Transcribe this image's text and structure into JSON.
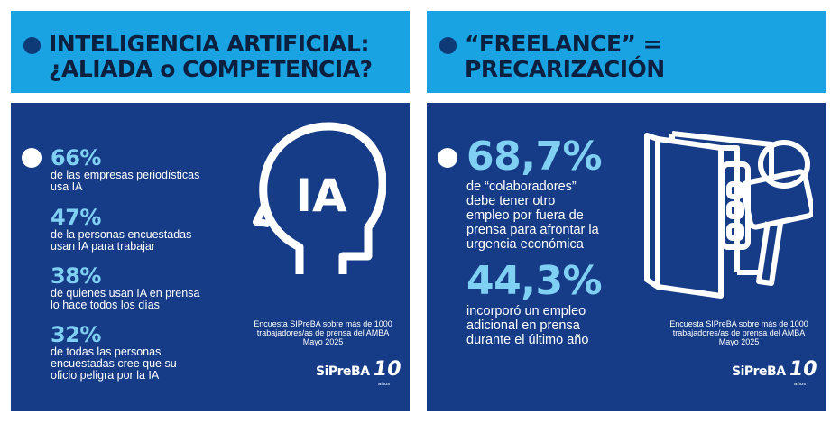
{
  "left": {
    "title": "INTELIGENCIA ARTIFICIAL:\n¿ALIADA o COMPETENCIA?",
    "stats": [
      {
        "value": "66%",
        "text": "de las empresas periodísticas\nusa IA"
      },
      {
        "value": "47%",
        "text": "de la personas encuestadas\nusan IA para trabajar"
      },
      {
        "value": "38%",
        "text": "de quienes usan IA en prensa\nlo hace todos los días"
      },
      {
        "value": "32%",
        "text": "de todas las personas\nencuestadas cree que su\noficio peligra por la IA"
      }
    ],
    "icon_label": "IA",
    "source": [
      "Encuesta SIPreBA sobre más de 1000",
      "trabajadores/as de prensa del AMBA",
      "Mayo 2025"
    ],
    "logo": {
      "name": "SiPreBA",
      "number": "10",
      "sub": "años"
    }
  },
  "right": {
    "title": "“FREELANCE” =\nPRECARIZACIÓN",
    "stats": [
      {
        "value": "68,7%",
        "text": "de “colaboradores”\ndebe tener otro\nempleo por fuera de\nprensa para afrontar la\nurgencia económica"
      },
      {
        "value": "44,3%",
        "text": "incorporó un empleo\nadicional en prensa\ndurante el último año"
      }
    ],
    "source": [
      "Encuesta SIPreBA sobre más de 1000",
      "trabajadores/as de prensa del AMBA",
      "Mayo 2025"
    ],
    "logo": {
      "name": "SiPreBA",
      "number": "10",
      "sub": "años"
    }
  },
  "colors": {
    "header": "#1aa3e3",
    "body": "#173c87",
    "accent": "#7fd0f3",
    "dot": "#0e3a78"
  }
}
